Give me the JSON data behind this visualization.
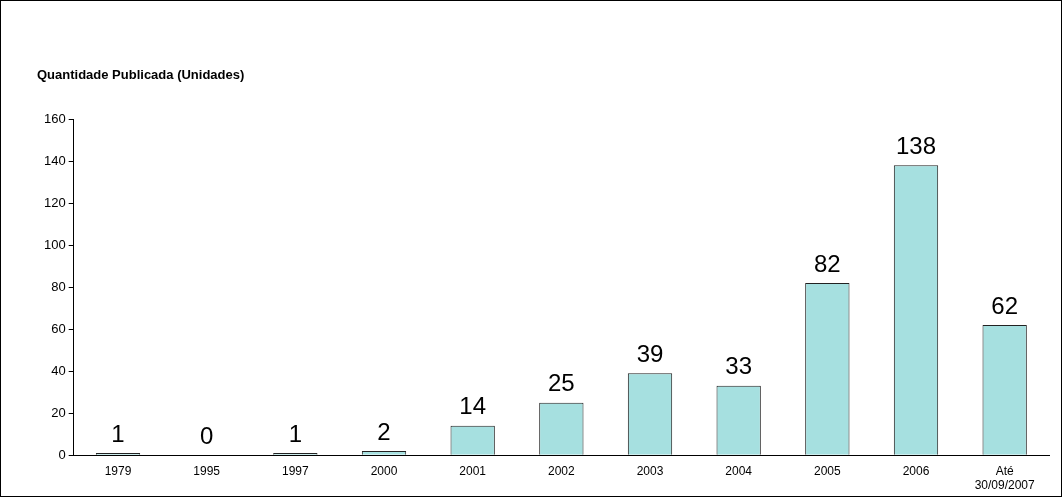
{
  "chart_data": {
    "type": "bar",
    "title": "Quantidade Publicada (Unidades)",
    "categories": [
      "1979",
      "1995",
      "1997",
      "2000",
      "2001",
      "2002",
      "2003",
      "2004",
      "2005",
      "2006",
      "Até 30/09/2007"
    ],
    "values": [
      1,
      0,
      1,
      2,
      14,
      25,
      39,
      33,
      82,
      138,
      62
    ],
    "color": "#a6e0e0",
    "ylim": [
      0,
      160
    ],
    "yticks": [
      0,
      20,
      40,
      60,
      80,
      100,
      120,
      140,
      160
    ],
    "grid": false,
    "legend": false,
    "data_labels": true
  }
}
